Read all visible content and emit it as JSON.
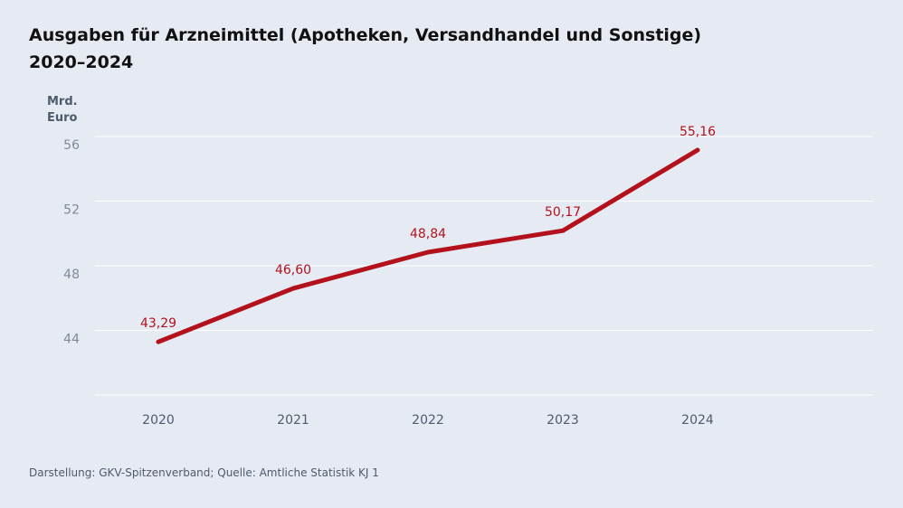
{
  "chart_data": {
    "type": "line",
    "title": "Ausgaben für Arzneimittel (Apotheken, Versandhandel und Sonstige)",
    "subtitle": "2020–2024",
    "y_label": "Mrd. Euro",
    "categories": [
      "2020",
      "2021",
      "2022",
      "2023",
      "2024"
    ],
    "values": [
      43.29,
      46.6,
      48.84,
      50.17,
      55.16
    ],
    "value_labels": [
      "43,29",
      "46,60",
      "48,84",
      "50,17",
      "55,16"
    ],
    "color": "#b3121c",
    "ylim": [
      40,
      56
    ],
    "yticks": [
      44,
      48,
      52,
      56
    ],
    "grid": true,
    "source": "Darstellung: GKV-Spitzenverband; Quelle: Amtliche Statistik KJ 1"
  }
}
